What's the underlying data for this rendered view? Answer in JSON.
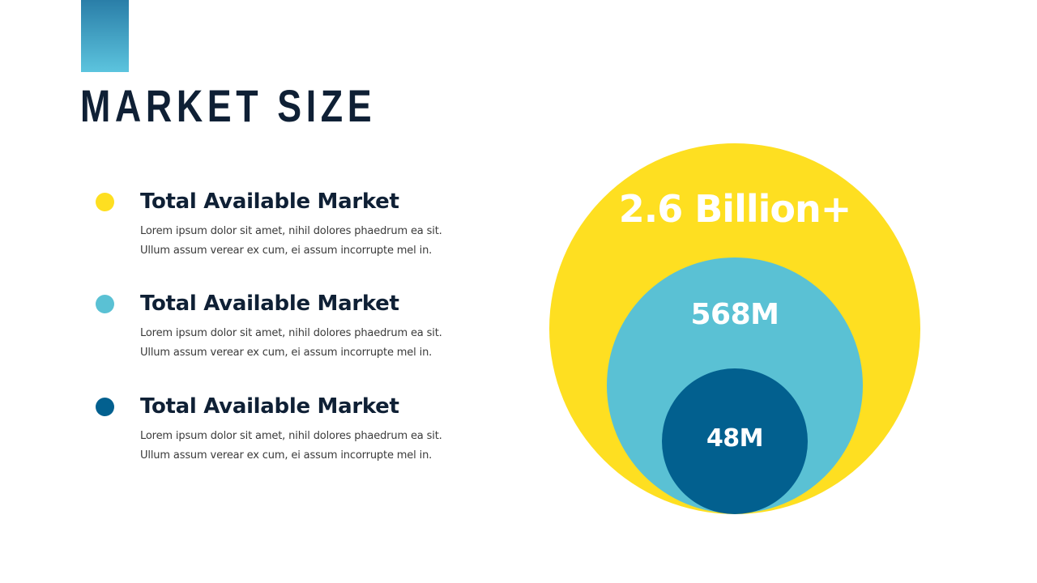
{
  "slide": {
    "title": "MARKET SIZE",
    "accent_color": "#2a7ea8"
  },
  "markets": [
    {
      "title": "Total Available Market",
      "text_line1": "Lorem ipsum dolor sit amet, nihil dolores phaedrum ea sit.",
      "text_line2": "Ullum assum verear ex cum, ei assum incorrupte mel in.",
      "color": "#fedf21"
    },
    {
      "title": "Total Available Market",
      "text_line1": "Lorem ipsum dolor sit amet, nihil dolores phaedrum ea sit.",
      "text_line2": "Ullum assum verear ex cum, ei assum incorrupte mel in.",
      "color": "#5ac1d4"
    },
    {
      "title": "Total Available Market",
      "text_line1": "Lorem ipsum dolor sit amet, nihil dolores phaedrum ea sit.",
      "text_line2": "Ullum assum verear ex cum, ei assum incorrupte mel in.",
      "color": "#02608f"
    }
  ],
  "circles": {
    "outer": {
      "label": "2.6 Billion+",
      "color": "#fedf21"
    },
    "middle": {
      "label": "568M",
      "color": "#5ac1d4"
    },
    "inner": {
      "label": "48M",
      "color": "#02608f"
    }
  }
}
